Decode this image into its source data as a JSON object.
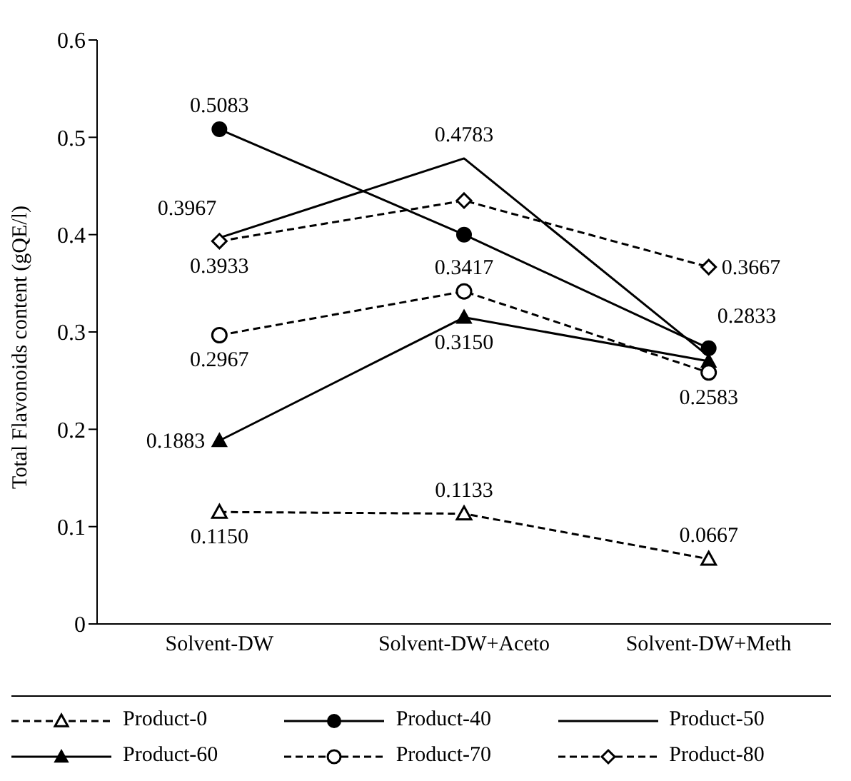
{
  "chart_data": {
    "type": "line",
    "ylabel": "Total Flavonoids content (gQE/l)",
    "categories": [
      "Solvent-DW",
      "Solvent-DW+Aceto",
      "Solvent-DW+Meth"
    ],
    "ylim": [
      0,
      0.6
    ],
    "yticks": [
      0,
      0.1,
      0.2,
      0.3,
      0.4,
      0.5,
      0.6
    ],
    "grid": false,
    "legend": "bottom",
    "series": [
      {
        "name": "Product-0",
        "color": "#000000",
        "marker": "triangle",
        "line_style": "dashed",
        "values": [
          0.115,
          0.1133,
          0.0667
        ],
        "value_labels": [
          "0.1150",
          "0.1133",
          "0.0667"
        ]
      },
      {
        "name": "Product-40",
        "color": "#000000",
        "marker": "circle",
        "line_style": "solid",
        "values": [
          0.5083,
          0.4,
          0.2833
        ],
        "value_labels": [
          "0.5083",
          null,
          "0.2833"
        ]
      },
      {
        "name": "Product-50",
        "color": "#000000",
        "marker": "none",
        "line_style": "solid",
        "values": [
          0.3967,
          0.4783,
          0.275
        ],
        "value_labels": [
          "0.3967",
          "0.4783",
          null
        ]
      },
      {
        "name": "Product-60",
        "color": "#000000",
        "marker": "triangle",
        "line_style": "solid",
        "values": [
          0.1883,
          0.315,
          0.27
        ],
        "value_labels": [
          "0.1883",
          "0.3150",
          null
        ]
      },
      {
        "name": "Product-70",
        "color": "#000000",
        "marker": "circle",
        "line_style": "dashed",
        "values": [
          0.2967,
          0.3417,
          0.2583
        ],
        "value_labels": [
          "0.2967",
          "0.3417",
          "0.2583"
        ]
      },
      {
        "name": "Product-80",
        "color": "#000000",
        "marker": "diamond",
        "line_style": "dashed",
        "values": [
          0.3933,
          0.435,
          0.3667
        ],
        "value_labels": [
          "0.3933",
          null,
          "0.3667"
        ]
      }
    ]
  }
}
